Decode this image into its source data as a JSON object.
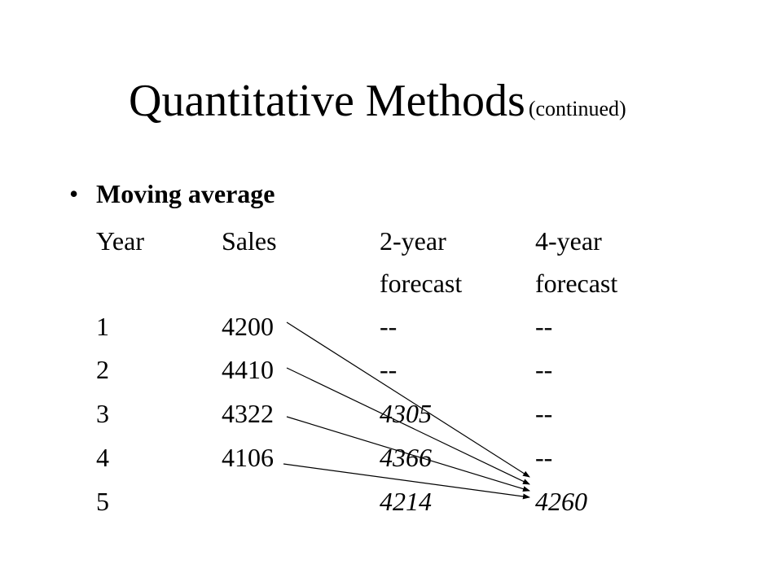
{
  "slide": {
    "title": "Quantitative Methods",
    "title_note": "(continued)",
    "bullet_symbol": "•",
    "bullet_text": "Moving average"
  },
  "table": {
    "headers": {
      "year": "Year",
      "sales": "Sales",
      "two_year_line1": "2-year",
      "two_year_line2": "forecast",
      "four_year_line1": "4-year",
      "four_year_line2": "forecast"
    },
    "rows": [
      {
        "year": "1",
        "sales": "4200",
        "two_year": "--",
        "four_year": "--"
      },
      {
        "year": "2",
        "sales": "4410",
        "two_year": "--",
        "four_year": "--"
      },
      {
        "year": "3",
        "sales": "4322",
        "two_year": "4305",
        "four_year": "--"
      },
      {
        "year": "4",
        "sales": "4106",
        "two_year": "4366",
        "four_year": "--"
      },
      {
        "year": "5",
        "sales": "",
        "two_year": "4214",
        "four_year": "4260"
      }
    ]
  }
}
